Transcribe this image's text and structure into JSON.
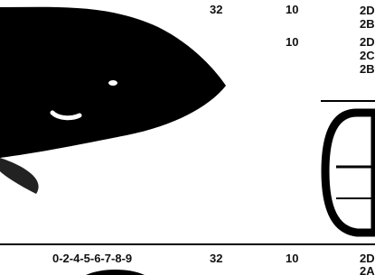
{
  "rows": [
    {
      "size": "32",
      "qty": "10",
      "codes": [
        "2D",
        "2B"
      ]
    },
    {
      "qty": "10",
      "codes": [
        "2D",
        "2C",
        "2B"
      ]
    },
    {
      "part": "0-2-4-5-6-7-8-9",
      "size": "32",
      "qty": "10",
      "codes": [
        "2D",
        "2A"
      ]
    }
  ]
}
